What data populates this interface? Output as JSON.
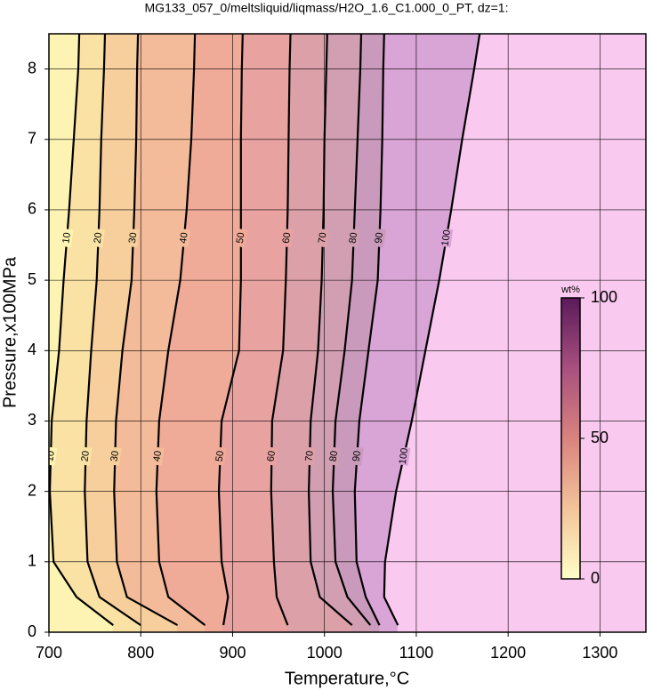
{
  "chart_data": {
    "type": "contour",
    "title": "MG133_057_0/meltsliquid/liqmass/H2O_1.6_C1.000_0_PT, dz=1:",
    "x_label": "Temperature,°C",
    "y_label": "Pressure,x100MPa",
    "xlim": [
      700,
      1350
    ],
    "xticks": [
      700,
      800,
      900,
      1000,
      1100,
      1200,
      1300
    ],
    "ylim": [
      0,
      8.5
    ],
    "yticks": [
      0,
      1,
      2,
      3,
      4,
      5,
      6,
      7,
      8
    ],
    "grid": true,
    "pressures": [
      0.1,
      0.5,
      1,
      2,
      3,
      4,
      5,
      6,
      7,
      8,
      8.5
    ],
    "contours": [
      {
        "level": 10,
        "temperatures": [
          770,
          730,
          705,
          701,
          703,
          711,
          716,
          722,
          727,
          732,
          733
        ]
      },
      {
        "level": 20,
        "temperatures": [
          800,
          755,
          742,
          739,
          741,
          746,
          752,
          755,
          757,
          760,
          761
        ]
      },
      {
        "level": 30,
        "temperatures": [
          840,
          785,
          774,
          771,
          773,
          780,
          790,
          793,
          795,
          796,
          797
        ]
      },
      {
        "level": 40,
        "temperatures": [
          870,
          830,
          820,
          817,
          820,
          830,
          843,
          850,
          855,
          858,
          859
        ]
      },
      {
        "level": 50,
        "temperatures": [
          890,
          895,
          888,
          885,
          888,
          907,
          909,
          909,
          909,
          910,
          911
        ]
      },
      {
        "level": 60,
        "temperatures": [
          960,
          948,
          945,
          942,
          943,
          955,
          958,
          960,
          961,
          962,
          963
        ]
      },
      {
        "level": 70,
        "temperatures": [
          1030,
          995,
          985,
          983,
          985,
          993,
          997,
          999,
          1000,
          1002,
          1003
        ]
      },
      {
        "level": 80,
        "temperatures": [
          1050,
          1025,
          1012,
          1009,
          1012,
          1022,
          1030,
          1033,
          1036,
          1039,
          1040
        ]
      },
      {
        "level": 90,
        "temperatures": [
          1060,
          1045,
          1035,
          1033,
          1038,
          1048,
          1058,
          1061,
          1063,
          1064,
          1065
        ]
      },
      {
        "level": 100,
        "temperatures": [
          1080,
          1065,
          1066,
          1078,
          1095,
          1110,
          1125,
          1138,
          1150,
          1163,
          1169
        ]
      }
    ],
    "fill_colors": [
      "#fdf3b2",
      "#f9e2a4",
      "#f6cf9c",
      "#f3bb99",
      "#f0aa98",
      "#e8a2a0",
      "#dca0a8",
      "#d19eb2",
      "#c99abb",
      "#d9a4d6",
      "#f9c9ef"
    ],
    "line_color": "#000000",
    "colorbar": {
      "title": "wt%",
      "lim": [
        0,
        100
      ],
      "ticks": [
        0,
        50,
        100
      ],
      "colors": [
        "#ffffc8",
        "#f3c49a",
        "#d9837e",
        "#a8507f",
        "#5a1a5a"
      ]
    }
  }
}
